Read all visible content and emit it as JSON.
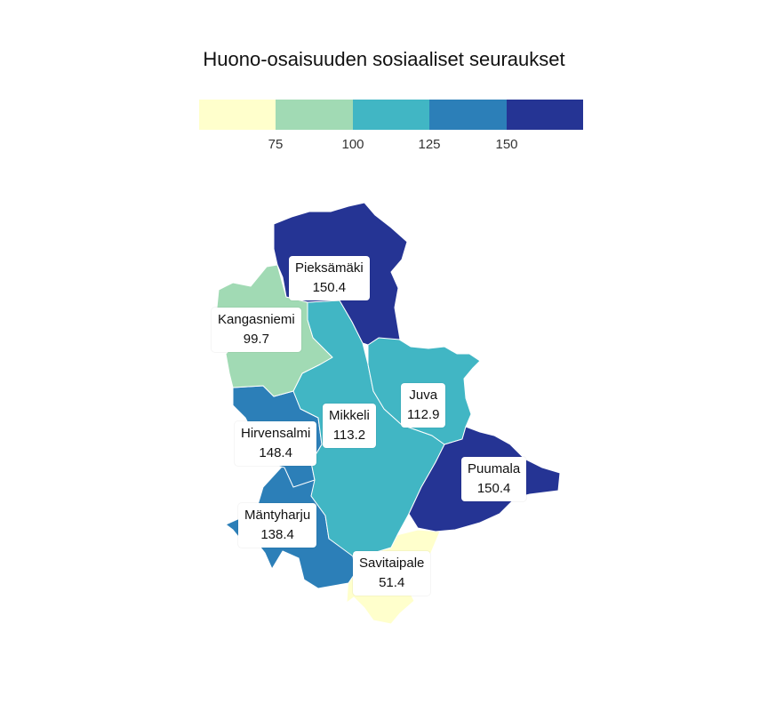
{
  "title": "Huono-osaisuuden sosiaaliset seuraukset",
  "legend": {
    "bins": [
      {
        "color": "#ffffcc"
      },
      {
        "color": "#a1dab4"
      },
      {
        "color": "#41b6c4"
      },
      {
        "color": "#2c7fb8"
      },
      {
        "color": "#253494"
      }
    ],
    "ticks": [
      "75",
      "100",
      "125",
      "150"
    ]
  },
  "regions": [
    {
      "id": "pieksamaki",
      "name": "Pieksämäki",
      "value": "150.4",
      "color": "#253494"
    },
    {
      "id": "kangasniemi",
      "name": "Kangasniemi",
      "value": "99.7",
      "color": "#a1dab4"
    },
    {
      "id": "juva",
      "name": "Juva",
      "value": "112.9",
      "color": "#41b6c4"
    },
    {
      "id": "mikkeli",
      "name": "Mikkeli",
      "value": "113.2",
      "color": "#41b6c4"
    },
    {
      "id": "hirvensalmi",
      "name": "Hirvensalmi",
      "value": "148.4",
      "color": "#2c7fb8"
    },
    {
      "id": "puumala",
      "name": "Puumala",
      "value": "150.4",
      "color": "#253494"
    },
    {
      "id": "mantyharju",
      "name": "Mäntyharju",
      "value": "138.4",
      "color": "#2c7fb8"
    },
    {
      "id": "savitaipale",
      "name": "Savitaipale",
      "value": "51.4",
      "color": "#ffffcc"
    }
  ]
}
